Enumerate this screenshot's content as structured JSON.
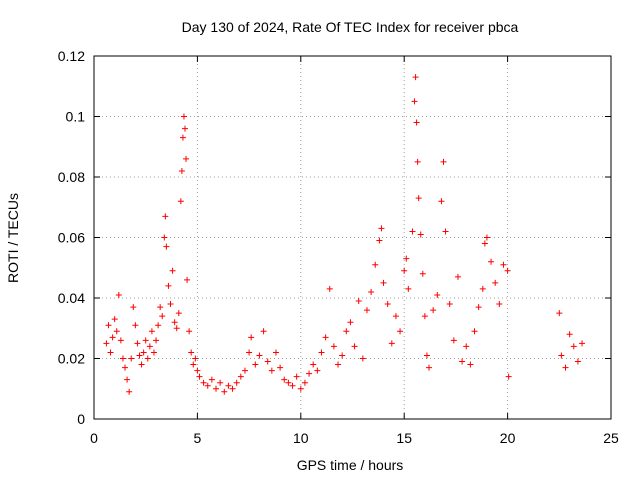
{
  "chart_data": {
    "type": "scatter",
    "title": "Day 130 of 2024, Rate Of TEC Index for receiver pbca",
    "xlabel": "GPS time / hours",
    "ylabel": "ROTI / TECUs",
    "xlim": [
      0,
      25
    ],
    "ylim": [
      0,
      0.12
    ],
    "xticks": [
      "0",
      "5",
      "10",
      "15",
      "20",
      "25"
    ],
    "yticks": [
      "0",
      "0.02",
      "0.04",
      "0.06",
      "0.08",
      "0.1",
      "0.12"
    ],
    "grid": true,
    "marker": "plus",
    "color": "#ff0000",
    "series": [
      {
        "points": [
          [
            0.6,
            0.025
          ],
          [
            0.7,
            0.031
          ],
          [
            0.8,
            0.022
          ],
          [
            0.9,
            0.027
          ],
          [
            1.0,
            0.033
          ],
          [
            1.1,
            0.029
          ],
          [
            1.2,
            0.041
          ],
          [
            1.3,
            0.026
          ],
          [
            1.4,
            0.02
          ],
          [
            1.5,
            0.017
          ],
          [
            1.6,
            0.013
          ],
          [
            1.7,
            0.009
          ],
          [
            1.8,
            0.02
          ],
          [
            1.9,
            0.037
          ],
          [
            2.0,
            0.031
          ],
          [
            2.1,
            0.025
          ],
          [
            2.2,
            0.021
          ],
          [
            2.3,
            0.018
          ],
          [
            2.4,
            0.022
          ],
          [
            2.5,
            0.026
          ],
          [
            2.6,
            0.02
          ],
          [
            2.7,
            0.024
          ],
          [
            2.8,
            0.029
          ],
          [
            2.9,
            0.022
          ],
          [
            3.0,
            0.026
          ],
          [
            3.1,
            0.031
          ],
          [
            3.2,
            0.037
          ],
          [
            3.3,
            0.034
          ],
          [
            3.4,
            0.06
          ],
          [
            3.45,
            0.067
          ],
          [
            3.5,
            0.057
          ],
          [
            3.6,
            0.044
          ],
          [
            3.7,
            0.038
          ],
          [
            3.8,
            0.049
          ],
          [
            3.9,
            0.032
          ],
          [
            4.0,
            0.03
          ],
          [
            4.1,
            0.035
          ],
          [
            4.2,
            0.072
          ],
          [
            4.25,
            0.082
          ],
          [
            4.3,
            0.093
          ],
          [
            4.35,
            0.1
          ],
          [
            4.4,
            0.096
          ],
          [
            4.45,
            0.086
          ],
          [
            4.5,
            0.046
          ],
          [
            4.6,
            0.029
          ],
          [
            4.7,
            0.022
          ],
          [
            4.8,
            0.018
          ],
          [
            4.9,
            0.02
          ],
          [
            5.0,
            0.016
          ],
          [
            5.1,
            0.014
          ],
          [
            5.3,
            0.012
          ],
          [
            5.5,
            0.011
          ],
          [
            5.7,
            0.013
          ],
          [
            5.9,
            0.01
          ],
          [
            6.1,
            0.012
          ],
          [
            6.3,
            0.009
          ],
          [
            6.5,
            0.011
          ],
          [
            6.7,
            0.01
          ],
          [
            6.9,
            0.012
          ],
          [
            7.1,
            0.014
          ],
          [
            7.3,
            0.016
          ],
          [
            7.5,
            0.022
          ],
          [
            7.6,
            0.027
          ],
          [
            7.8,
            0.018
          ],
          [
            8.0,
            0.021
          ],
          [
            8.2,
            0.029
          ],
          [
            8.4,
            0.019
          ],
          [
            8.6,
            0.016
          ],
          [
            8.8,
            0.022
          ],
          [
            9.0,
            0.017
          ],
          [
            9.2,
            0.013
          ],
          [
            9.4,
            0.012
          ],
          [
            9.6,
            0.011
          ],
          [
            9.8,
            0.014
          ],
          [
            10.0,
            0.01
          ],
          [
            10.2,
            0.012
          ],
          [
            10.4,
            0.015
          ],
          [
            10.6,
            0.018
          ],
          [
            10.8,
            0.016
          ],
          [
            11.0,
            0.022
          ],
          [
            11.2,
            0.027
          ],
          [
            11.4,
            0.043
          ],
          [
            11.6,
            0.024
          ],
          [
            11.8,
            0.018
          ],
          [
            12.0,
            0.021
          ],
          [
            12.2,
            0.029
          ],
          [
            12.4,
            0.032
          ],
          [
            12.6,
            0.024
          ],
          [
            12.8,
            0.039
          ],
          [
            13.0,
            0.02
          ],
          [
            13.2,
            0.036
          ],
          [
            13.4,
            0.042
          ],
          [
            13.6,
            0.051
          ],
          [
            13.8,
            0.059
          ],
          [
            13.9,
            0.063
          ],
          [
            14.0,
            0.045
          ],
          [
            14.2,
            0.038
          ],
          [
            14.4,
            0.025
          ],
          [
            14.6,
            0.034
          ],
          [
            14.8,
            0.029
          ],
          [
            15.0,
            0.049
          ],
          [
            15.1,
            0.053
          ],
          [
            15.2,
            0.043
          ],
          [
            15.4,
            0.062
          ],
          [
            15.5,
            0.105
          ],
          [
            15.55,
            0.113
          ],
          [
            15.6,
            0.098
          ],
          [
            15.65,
            0.085
          ],
          [
            15.7,
            0.073
          ],
          [
            15.8,
            0.061
          ],
          [
            15.9,
            0.048
          ],
          [
            16.0,
            0.034
          ],
          [
            16.1,
            0.021
          ],
          [
            16.2,
            0.017
          ],
          [
            16.4,
            0.036
          ],
          [
            16.6,
            0.041
          ],
          [
            16.8,
            0.072
          ],
          [
            16.9,
            0.085
          ],
          [
            17.0,
            0.062
          ],
          [
            17.2,
            0.038
          ],
          [
            17.4,
            0.026
          ],
          [
            17.6,
            0.047
          ],
          [
            17.8,
            0.019
          ],
          [
            18.0,
            0.024
          ],
          [
            18.2,
            0.018
          ],
          [
            18.4,
            0.029
          ],
          [
            18.6,
            0.037
          ],
          [
            18.8,
            0.043
          ],
          [
            18.9,
            0.058
          ],
          [
            19.0,
            0.06
          ],
          [
            19.2,
            0.052
          ],
          [
            19.4,
            0.045
          ],
          [
            19.6,
            0.038
          ],
          [
            19.8,
            0.051
          ],
          [
            20.0,
            0.049
          ],
          [
            20.05,
            0.014
          ],
          [
            22.5,
            0.035
          ],
          [
            22.6,
            0.021
          ],
          [
            22.8,
            0.017
          ],
          [
            23.0,
            0.028
          ],
          [
            23.2,
            0.024
          ],
          [
            23.4,
            0.019
          ],
          [
            23.6,
            0.025
          ]
        ]
      }
    ]
  }
}
